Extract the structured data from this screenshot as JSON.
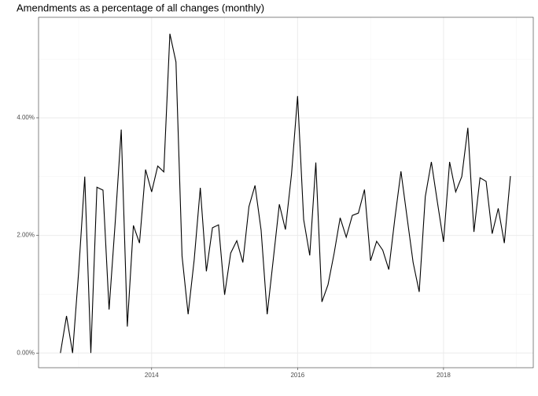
{
  "chart_data": {
    "type": "line",
    "title": "Amendments as a percentage of all changes (monthly)",
    "x": [
      "2012-10",
      "2012-11",
      "2012-12",
      "2013-01",
      "2013-02",
      "2013-03",
      "2013-04",
      "2013-05",
      "2013-06",
      "2013-07",
      "2013-08",
      "2013-09",
      "2013-10",
      "2013-11",
      "2013-12",
      "2014-01",
      "2014-02",
      "2014-03",
      "2014-04",
      "2014-05",
      "2014-06",
      "2014-07",
      "2014-08",
      "2014-09",
      "2014-10",
      "2014-11",
      "2014-12",
      "2015-01",
      "2015-02",
      "2015-03",
      "2015-04",
      "2015-05",
      "2015-06",
      "2015-07",
      "2015-08",
      "2015-09",
      "2015-10",
      "2015-11",
      "2015-12",
      "2016-01",
      "2016-02",
      "2016-03",
      "2016-04",
      "2016-05",
      "2016-06",
      "2016-07",
      "2016-08",
      "2016-09",
      "2016-10",
      "2016-11",
      "2016-12",
      "2017-01",
      "2017-02",
      "2017-03",
      "2017-04",
      "2017-05",
      "2017-06",
      "2017-07",
      "2017-08",
      "2017-09",
      "2017-10",
      "2017-11",
      "2017-12",
      "2018-01",
      "2018-02",
      "2018-03",
      "2018-04",
      "2018-05",
      "2018-06",
      "2018-07",
      "2018-08",
      "2018-09",
      "2018-10",
      "2018-11",
      "2018-12"
    ],
    "series": [
      {
        "color": "#000000",
        "values": [
          0,
          0.63,
          0,
          1.39,
          3.0,
          0,
          2.82,
          2.77,
          0.74,
          2.21,
          3.8,
          0.45,
          2.17,
          1.87,
          3.12,
          2.74,
          3.18,
          3.08,
          5.43,
          4.95,
          1.65,
          0.66,
          1.59,
          2.81,
          1.39,
          2.13,
          2.18,
          0.99,
          1.7,
          1.91,
          1.54,
          2.49,
          2.85,
          2.09,
          0.66,
          1.59,
          2.53,
          2.1,
          3.04,
          4.37,
          2.27,
          1.66,
          3.24,
          0.87,
          1.16,
          1.69,
          2.3,
          1.97,
          2.34,
          2.38,
          2.78,
          1.57,
          1.9,
          1.75,
          1.42,
          2.29,
          3.09,
          2.31,
          1.54,
          1.04,
          2.66,
          3.25,
          2.56,
          1.89,
          3.25,
          2.74,
          3.0,
          3.83,
          2.06,
          2.98,
          2.92,
          2.03,
          2.46,
          1.87,
          3.01
        ]
      }
    ],
    "xlim": [
      2012.45,
      2019.23
    ],
    "xticks": [
      2014,
      2016,
      2018
    ],
    "ylim": [
      -0.25,
      5.71
    ],
    "yticks": [
      {
        "value": 0,
        "label": "0.00%"
      },
      {
        "value": 2,
        "label": "2.00%"
      },
      {
        "value": 4,
        "label": "4.00%"
      }
    ],
    "grid": true
  }
}
